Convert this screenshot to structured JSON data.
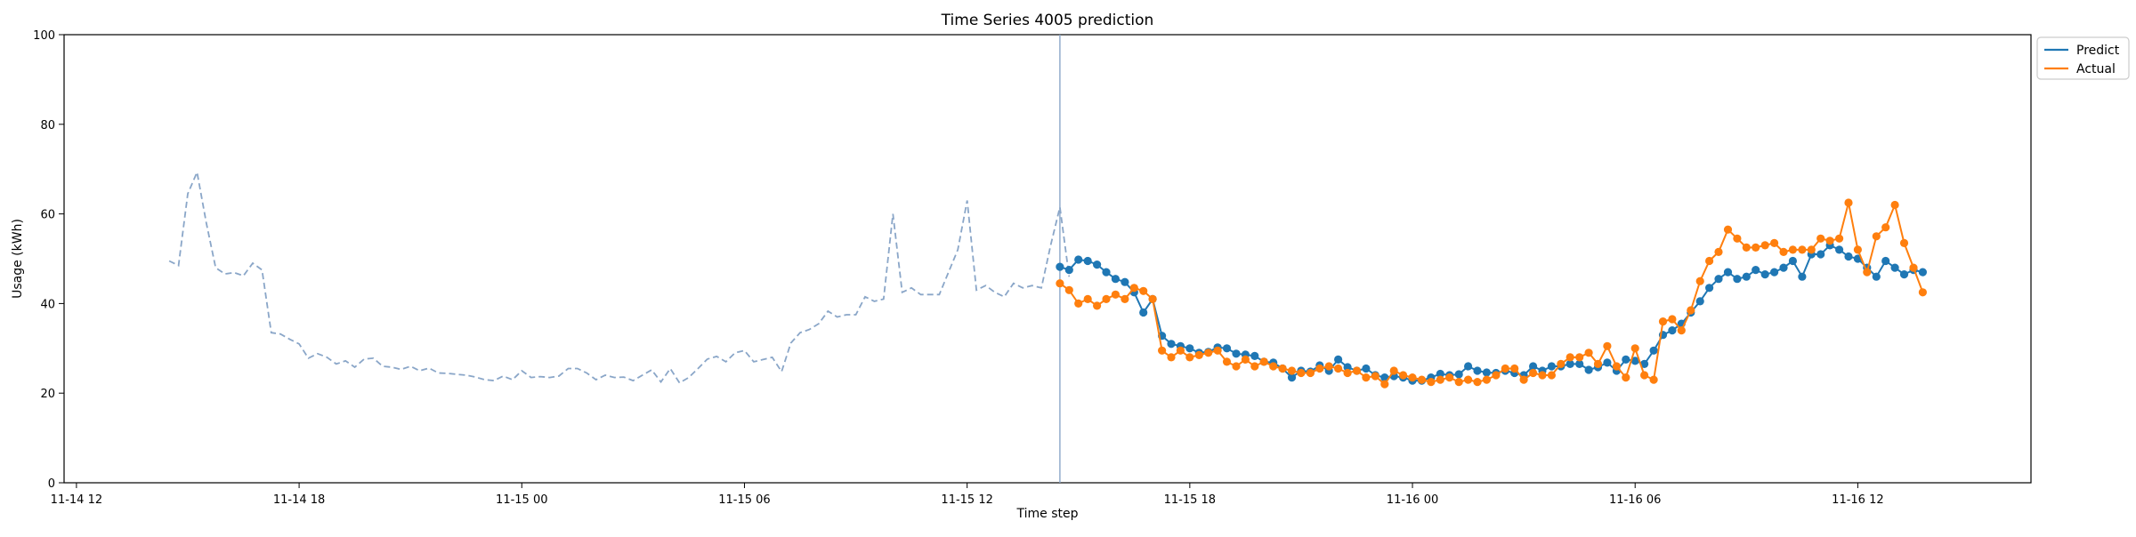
{
  "chart_data": {
    "type": "line",
    "title": "Time Series 4005 prediction",
    "xlabel": "Time step",
    "ylabel": "Usage (kWh)",
    "ylim": [
      0,
      100
    ],
    "xlim": [
      "2020-11-14T11:40",
      "2020-11-16T16:40"
    ],
    "x_ticks": [
      {
        "label": "11-14 12",
        "time": "2020-11-14T12:00"
      },
      {
        "label": "11-14 18",
        "time": "2020-11-14T18:00"
      },
      {
        "label": "11-15 00",
        "time": "2020-11-15T00:00"
      },
      {
        "label": "11-15 06",
        "time": "2020-11-15T06:00"
      },
      {
        "label": "11-15 12",
        "time": "2020-11-15T12:00"
      },
      {
        "label": "11-15 18",
        "time": "2020-11-15T18:00"
      },
      {
        "label": "11-16 00",
        "time": "2020-11-16T00:00"
      },
      {
        "label": "11-16 06",
        "time": "2020-11-16T06:00"
      },
      {
        "label": "11-16 12",
        "time": "2020-11-16T12:00"
      }
    ],
    "y_ticks": [
      0,
      20,
      40,
      60,
      80,
      100
    ],
    "grid": false,
    "legend_position": "outside-top-right",
    "split_time": "2020-11-15T14:30",
    "time_step_minutes": 15,
    "colors": {
      "history": "#8aa6c8",
      "predict": "#1f77b4",
      "actual": "#ff7f0e",
      "split": "#8aa6c8"
    },
    "history": {
      "start": "2020-11-14T14:30",
      "values": [
        49.5,
        48.5,
        64.5,
        69.3,
        58.0,
        48.0,
        46.6,
        46.9,
        46.2,
        49.0,
        47.5,
        33.5,
        33.2,
        32.0,
        31.0,
        27.8,
        28.8,
        28.0,
        26.5,
        27.2,
        25.8,
        27.6,
        27.8,
        26.0,
        25.8,
        25.3,
        26.0,
        25.0,
        25.6,
        24.5,
        24.4,
        24.2,
        24.0,
        23.6,
        23.0,
        22.8,
        23.8,
        23.0,
        25.0,
        23.5,
        23.7,
        23.5,
        23.8,
        25.5,
        25.5,
        24.5,
        23.0,
        24.0,
        23.5,
        23.6,
        22.8,
        24.0,
        25.2,
        22.5,
        25.5,
        22.3,
        23.5,
        25.5,
        27.6,
        28.2,
        27.0,
        29.0,
        29.5,
        27.0,
        27.5,
        28.0,
        24.8,
        31.2,
        33.5,
        34.2,
        35.5,
        38.3,
        37.0,
        37.5,
        37.5,
        41.5,
        40.5,
        41.0,
        60.0,
        42.5,
        43.5,
        42.0,
        42.0,
        42.0,
        47.0,
        52.0,
        63.0,
        43.0,
        44.0,
        42.5,
        41.5,
        44.5,
        43.5,
        44.0,
        43.5,
        53.0,
        61.5,
        46.0
      ]
    },
    "series": [
      {
        "name": "Predict",
        "start": "2020-11-15T14:30",
        "values": [
          48.2,
          47.5,
          49.8,
          49.5,
          48.7,
          47.0,
          45.5,
          44.8,
          42.5,
          38.0,
          41.0,
          32.8,
          31.0,
          30.5,
          30.0,
          29.0,
          29.2,
          30.2,
          30.0,
          28.8,
          28.6,
          28.3,
          27.0,
          26.8,
          25.5,
          23.5,
          25.0,
          24.8,
          26.2,
          25.0,
          27.5,
          25.8,
          25.0,
          25.5,
          24.0,
          23.5,
          23.8,
          23.5,
          22.8,
          22.8,
          23.5,
          24.3,
          24.0,
          24.2,
          26.0,
          25.0,
          24.6,
          24.5,
          25.0,
          24.5,
          24.0,
          26.0,
          25.0,
          26.0,
          26.0,
          26.5,
          26.5,
          25.2,
          25.8,
          26.8,
          25.0,
          27.5,
          27.2,
          26.5,
          29.5,
          33.0,
          34.0,
          35.5,
          38.0,
          40.5,
          43.5,
          45.5,
          47.0,
          45.5,
          46.0,
          47.5,
          46.5,
          47.0,
          48.0,
          49.5,
          46.0,
          51.0,
          51.0,
          53.0,
          52.0,
          50.5,
          50.0,
          48.0,
          46.0,
          49.5,
          48.0,
          46.5,
          47.5,
          47.0
        ]
      },
      {
        "name": "Actual",
        "start": "2020-11-15T14:30",
        "values": [
          44.5,
          43.0,
          40.0,
          41.0,
          39.5,
          41.0,
          42.0,
          41.0,
          43.5,
          42.8,
          41.0,
          29.5,
          28.0,
          29.5,
          28.0,
          28.5,
          29.0,
          29.5,
          27.0,
          26.0,
          27.5,
          26.0,
          27.0,
          26.0,
          25.5,
          25.0,
          24.5,
          24.5,
          25.5,
          26.0,
          25.5,
          24.5,
          25.0,
          23.5,
          23.8,
          22.0,
          25.0,
          24.0,
          23.5,
          23.0,
          22.5,
          23.0,
          23.5,
          22.5,
          23.0,
          22.5,
          23.0,
          24.0,
          25.5,
          25.5,
          23.0,
          24.5,
          24.0,
          24.0,
          26.5,
          28.0,
          28.0,
          29.0,
          26.5,
          30.5,
          26.0,
          23.5,
          30.0,
          24.0,
          23.0,
          36.0,
          36.5,
          34.0,
          38.5,
          45.0,
          49.5,
          51.5,
          56.5,
          54.5,
          52.5,
          52.5,
          53.0,
          53.5,
          51.5,
          52.0,
          52.0,
          52.0,
          54.5,
          54.0,
          54.5,
          62.5,
          52.0,
          47.0,
          55.0,
          57.0,
          62.0,
          53.5,
          48.0,
          42.5
        ]
      }
    ]
  }
}
